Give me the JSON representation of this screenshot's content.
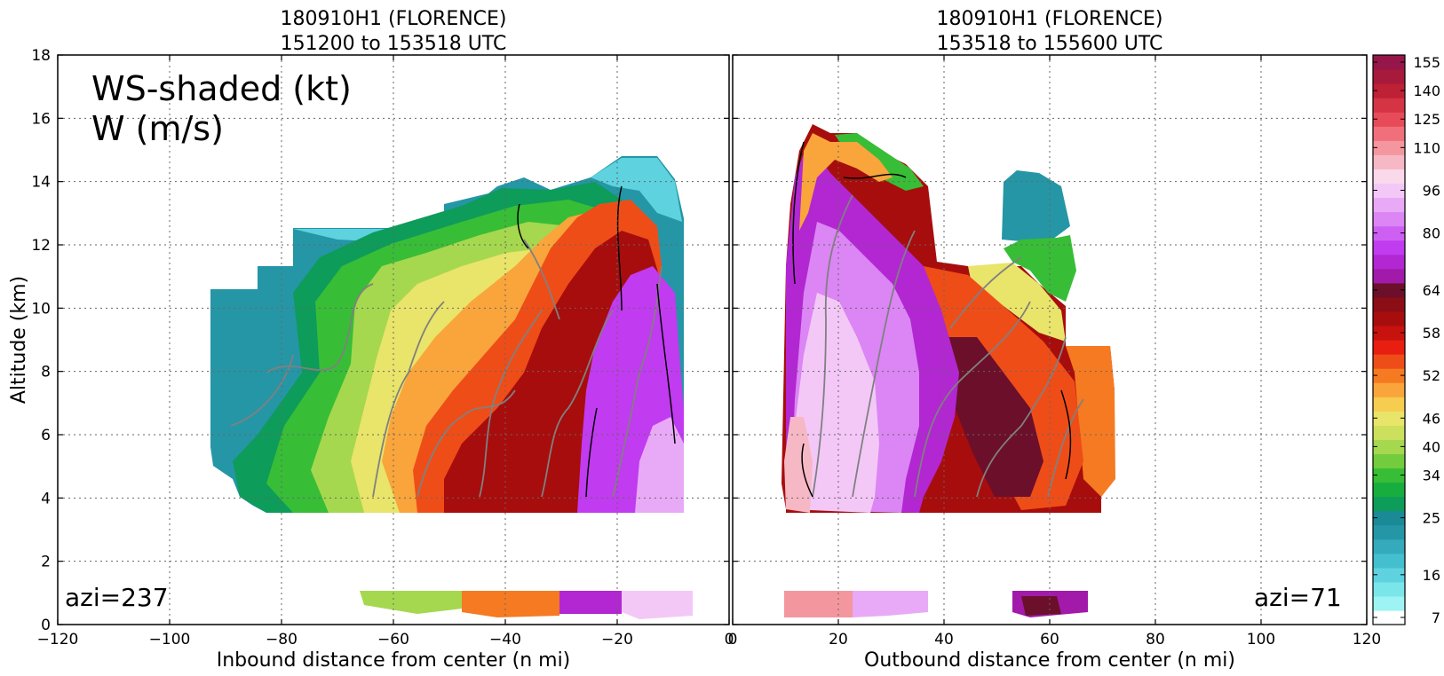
{
  "chart_data": [
    {
      "type": "heatmap",
      "title_line1": "180910H1 (FLORENCE)",
      "title_line2": "151200 to 153518 UTC",
      "xlabel": "Inbound distance from center (n mi)",
      "ylabel": "Altitude (km)",
      "xlim": [
        -120,
        0
      ],
      "ylim": [
        0,
        18
      ],
      "x_ticks": [
        -120,
        -100,
        -80,
        -60,
        -40,
        -20,
        0
      ],
      "y_ticks": [
        0,
        2,
        4,
        6,
        8,
        10,
        12,
        14,
        16,
        18
      ],
      "grid": true,
      "annotation_main_line1": "WS-shaded (kt)",
      "annotation_main_line2": "W (m/s)",
      "annotation_azimuth": "azi=237"
    },
    {
      "type": "heatmap",
      "title_line1": "180910H1 (FLORENCE)",
      "title_line2": "153518 to 155600 UTC",
      "xlabel": "Outbound distance from center (n mi)",
      "xlim": [
        0,
        120
      ],
      "ylim": [
        0,
        18
      ],
      "x_ticks": [
        0,
        20,
        40,
        60,
        80,
        100,
        120
      ],
      "grid": true,
      "annotation_azimuth": "azi=71"
    }
  ],
  "colorbar": {
    "tick_labels": [
      "7",
      "16",
      "25",
      "34",
      "40",
      "46",
      "52",
      "58",
      "64",
      "80",
      "96",
      "110",
      "125",
      "140",
      "155"
    ],
    "colors": [
      "#ffffff",
      "#9ef4f4",
      "#7ae6ea",
      "#5ed2de",
      "#43bfcf",
      "#35aabd",
      "#2596a6",
      "#1a8a97",
      "#0d9c5a",
      "#18ad3f",
      "#38bd37",
      "#72cc3d",
      "#a5d84e",
      "#cce05e",
      "#e9e46a",
      "#f6cd4e",
      "#f9a53b",
      "#f57a21",
      "#ef4d18",
      "#e81e10",
      "#c8120e",
      "#a70d0c",
      "#8b0d16",
      "#6c0f2a",
      "#a21aaa",
      "#b227d2",
      "#c13bf0",
      "#cd60f3",
      "#db86f4",
      "#e8aaf6",
      "#f3c8f7",
      "#f9d9ea",
      "#f6b8c4",
      "#f4969e",
      "#f16f7a",
      "#e74a58",
      "#d53445",
      "#be2036",
      "#a81a3c",
      "#96164a"
    ],
    "tick_levels": [
      0,
      3,
      7,
      10,
      12,
      14,
      17,
      20,
      23,
      27,
      30,
      33,
      35,
      37,
      39
    ]
  }
}
